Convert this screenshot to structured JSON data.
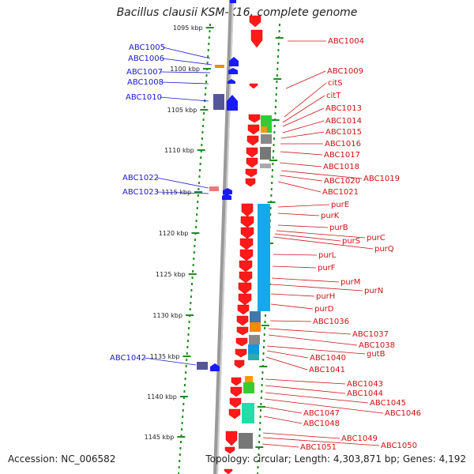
{
  "title": "Bacillus clausii KSM-K16, complete genome",
  "accession": "Accession: NC_006582",
  "topology": "Topology: circular; Length: 4,303,871 bp; Genes: 4,192",
  "ruler_labels": [
    "1095 kbp",
    "1100 kbp",
    "1105 kbp",
    "1110 kbp",
    "1115 kbp",
    "1120 kbp",
    "1125 kbp",
    "1130 kbp",
    "1135 kbp",
    "1140 kbp",
    "1145 kbp"
  ],
  "left_genes": [
    "ABC1005",
    "ABC1006",
    "ABC1007",
    "ABC1008",
    "ABC1010",
    "ABC1022",
    "ABC1023",
    "ABC1042"
  ],
  "right_genes": [
    "ABC1004",
    "ABC1009",
    "citS",
    "citT",
    "ABC1013",
    "ABC1014",
    "ABC1015",
    "ABC1016",
    "ABC1017",
    "ABC1018",
    "ABC1019",
    "ABC1020",
    "ABC1021",
    "purE",
    "purK",
    "purB",
    "purC",
    "purS",
    "purQ",
    "purL",
    "purF",
    "purM",
    "purN",
    "purH",
    "purD",
    "ABC1036",
    "ABC1037",
    "ABC1038",
    "gutB",
    "ABC1040",
    "ABC1041",
    "ABC1043",
    "ABC1044",
    "ABC1045",
    "ABC1046",
    "ABC1047",
    "ABC1048",
    "ABC1049",
    "ABC1050",
    "ABC1051"
  ],
  "colors": {
    "left_label": "#1a1acc",
    "right_label": "#cc1111",
    "ruler": "#1e8c1e",
    "backbone": "#888888"
  }
}
